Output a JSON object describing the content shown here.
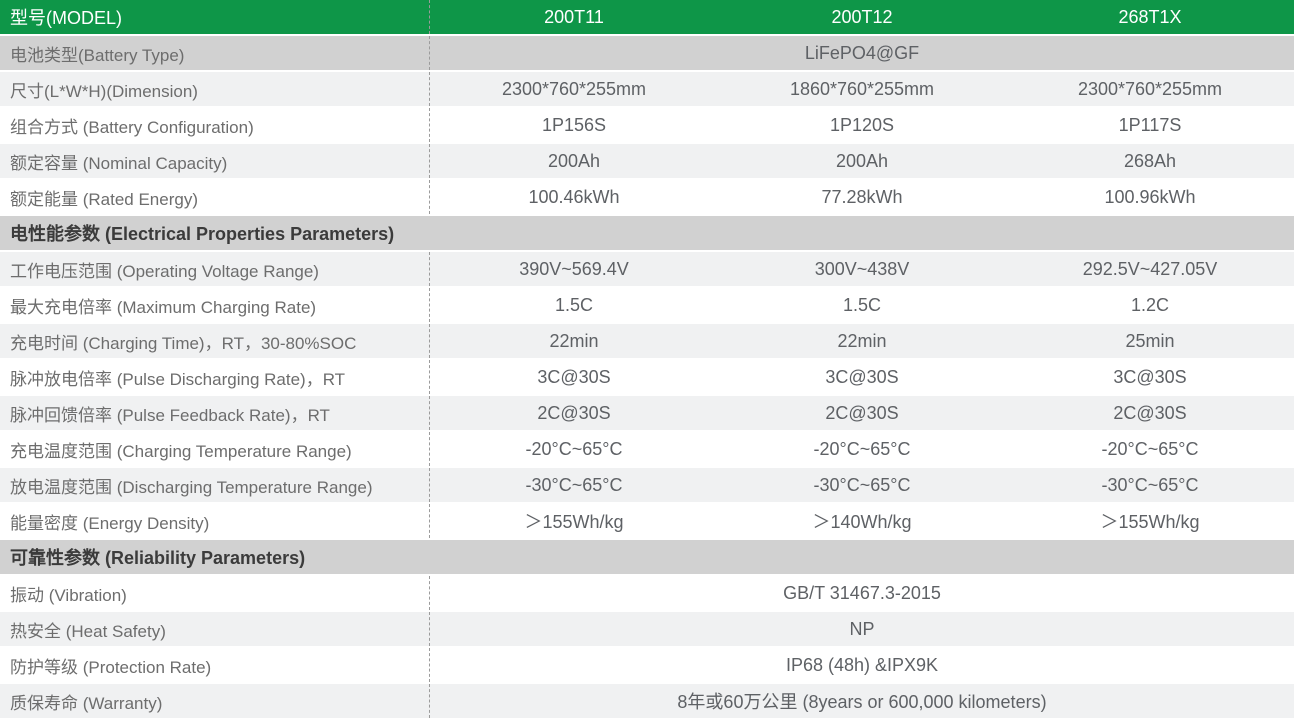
{
  "colors": {
    "header_green": "#0e9648",
    "section_gray": "#d1d1d1",
    "stripe_light": "#f0f1f2",
    "row_white": "#ffffff",
    "divider_dash": "#9b9b9b"
  },
  "header": {
    "label": "型号(MODEL)",
    "models": [
      "200T11",
      "200T12",
      "268T1X"
    ]
  },
  "rows": [
    {
      "kind": "merged",
      "bg": "gray",
      "label": "电池类型(Battery Type)",
      "value": "LiFePO4@GF"
    },
    {
      "kind": "data",
      "bg": "light",
      "label": "尺寸(L*W*H)(Dimension)",
      "values": [
        "2300*760*255mm",
        "1860*760*255mm",
        "2300*760*255mm"
      ]
    },
    {
      "kind": "data",
      "bg": "white",
      "label": "组合方式 (Battery Configuration)",
      "values": [
        "1P156S",
        "1P120S",
        "1P117S"
      ]
    },
    {
      "kind": "data",
      "bg": "light",
      "label": "额定容量 (Nominal Capacity)",
      "values": [
        "200Ah",
        "200Ah",
        "268Ah"
      ]
    },
    {
      "kind": "data",
      "bg": "white",
      "label": "额定能量 (Rated Energy)",
      "values": [
        "100.46kWh",
        "77.28kWh",
        "100.96kWh"
      ]
    },
    {
      "kind": "section",
      "bg": "gray",
      "label": "电性能参数 (Electrical Properties Parameters)"
    },
    {
      "kind": "data",
      "bg": "light",
      "label": "工作电压范围 (Operating Voltage Range)",
      "values": [
        "390V~569.4V",
        "300V~438V",
        "292.5V~427.05V"
      ]
    },
    {
      "kind": "data",
      "bg": "white",
      "label": "最大充电倍率 (Maximum Charging Rate)",
      "values": [
        "1.5C",
        "1.5C",
        "1.2C"
      ]
    },
    {
      "kind": "data",
      "bg": "light",
      "label": "充电时间 (Charging Time)，RT，30-80%SOC",
      "values": [
        "22min",
        "22min",
        "25min"
      ]
    },
    {
      "kind": "data",
      "bg": "white",
      "label": "脉冲放电倍率 (Pulse Discharging Rate)，RT",
      "values": [
        "3C@30S",
        "3C@30S",
        "3C@30S"
      ]
    },
    {
      "kind": "data",
      "bg": "light",
      "label": "脉冲回馈倍率 (Pulse Feedback Rate)，RT",
      "values": [
        "2C@30S",
        "2C@30S",
        "2C@30S"
      ]
    },
    {
      "kind": "data",
      "bg": "white",
      "label": "充电温度范围 (Charging Temperature Range)",
      "values": [
        "-20°C~65°C",
        "-20°C~65°C",
        "-20°C~65°C"
      ]
    },
    {
      "kind": "data",
      "bg": "light",
      "label": "放电温度范围 (Discharging Temperature Range)",
      "values": [
        "-30°C~65°C",
        "-30°C~65°C",
        "-30°C~65°C"
      ]
    },
    {
      "kind": "data",
      "bg": "white",
      "label": "能量密度 (Energy Density)",
      "values": [
        "＞155Wh/kg",
        "＞140Wh/kg",
        "＞155Wh/kg"
      ]
    },
    {
      "kind": "section",
      "bg": "gray",
      "label": "可靠性参数 (Reliability Parameters)"
    },
    {
      "kind": "merged",
      "bg": "white",
      "label": "振动 (Vibration)",
      "value": "GB/T 31467.3-2015"
    },
    {
      "kind": "merged",
      "bg": "light",
      "label": "热安全 (Heat Safety)",
      "value": "NP"
    },
    {
      "kind": "merged",
      "bg": "white",
      "label": "防护等级 (Protection Rate)",
      "value": "IP68 (48h) &IPX9K"
    },
    {
      "kind": "merged",
      "bg": "light",
      "label": "质保寿命 (Warranty)",
      "value": "8年或60万公里 (8years or 600,000 kilometers)"
    }
  ]
}
